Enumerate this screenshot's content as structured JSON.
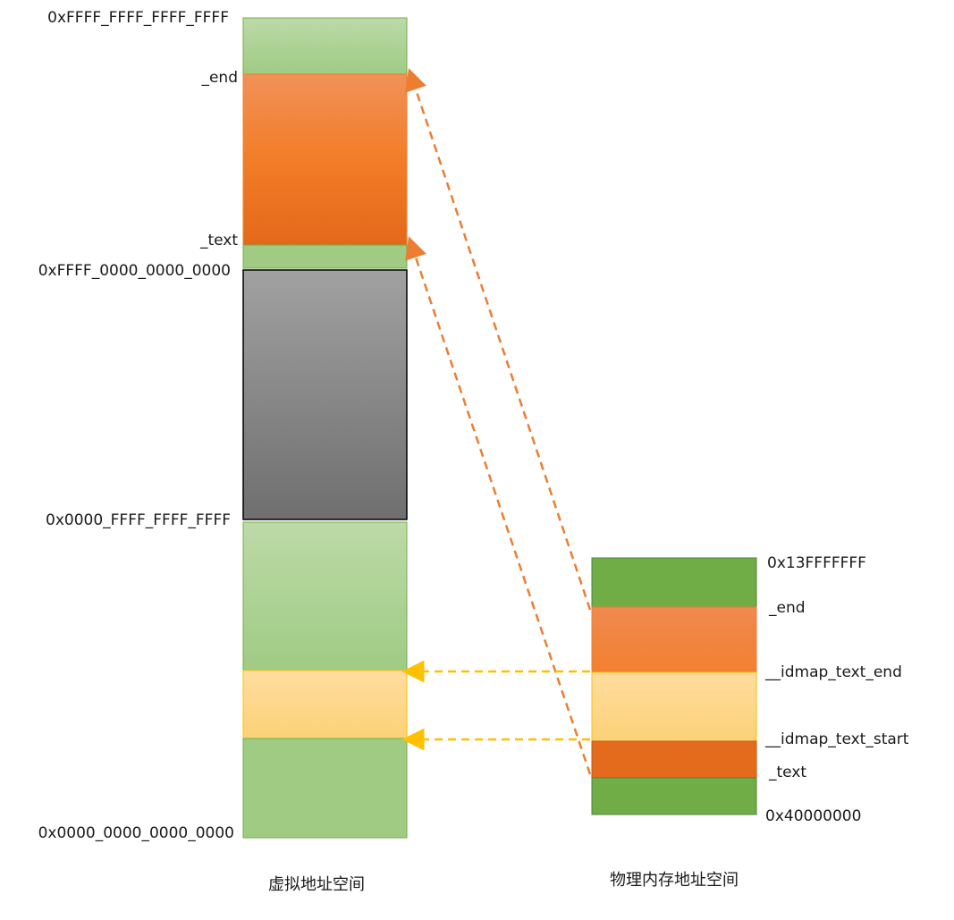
{
  "virtual_space": {
    "caption": "虚拟地址空间",
    "labels": {
      "top": "0xFFFF_FFFF_FFFF_FFFF",
      "end": "_end",
      "text": "_text",
      "kernel_base": "0xFFFF_0000_0000_0000",
      "user_top": "0x0000_FFFF_FFFF_FFFF",
      "bottom": "0x0000_0000_0000_0000"
    }
  },
  "physical_space": {
    "caption": "物理内存地址空间",
    "labels": {
      "top": "0x13FFFFFFF",
      "end": "_end",
      "idmap_end": "__idmap_text_end",
      "idmap_start": "__idmap_text_start",
      "text": "_text",
      "bottom": "0x40000000"
    }
  },
  "colors": {
    "green_light": "#a9d18e",
    "green_dark": "#70ad47",
    "orange": "#f07f2a",
    "orange_dark": "#e46b1c",
    "gray": "#888888",
    "yellow": "#ffd98a",
    "arrow_orange": "#ed7d31",
    "arrow_yellow": "#ffc000"
  }
}
